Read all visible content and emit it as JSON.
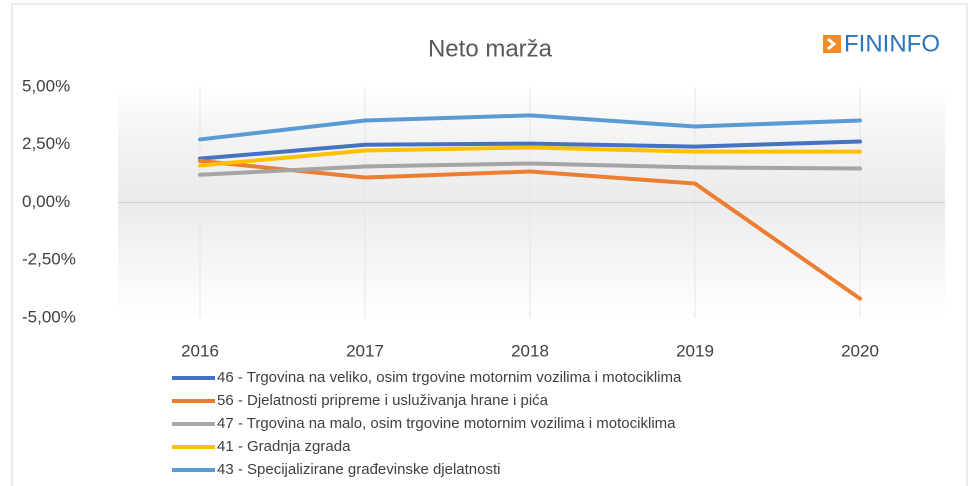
{
  "logo": "FININFO",
  "chart_data": {
    "type": "line",
    "title": "Neto marža",
    "categories": [
      "2016",
      "2017",
      "2018",
      "2019",
      "2020"
    ],
    "ylim": [
      -5,
      5
    ],
    "yticks": [
      {
        "value": 5,
        "label": "5,00%"
      },
      {
        "value": 2.5,
        "label": "2,50%"
      },
      {
        "value": 0,
        "label": "0,00%"
      },
      {
        "value": -2.5,
        "label": "-2,50%"
      },
      {
        "value": -5,
        "label": "-5,00%"
      }
    ],
    "series": [
      {
        "name": "46 - Trgovina na veliko, osim trgovine motornim vozilima i motociklima",
        "color": "#4472c4",
        "values": [
          1.9,
          2.5,
          2.55,
          2.42,
          2.64
        ]
      },
      {
        "name": "56 - Djelatnosti pripreme i usluživanja hrane i pića",
        "color": "#ed7d31",
        "values": [
          1.8,
          1.08,
          1.34,
          0.82,
          -4.16
        ]
      },
      {
        "name": "47 - Trgovina na malo, osim trgovine motornim vozilima i motociklima",
        "color": "#a5a5a5",
        "values": [
          1.2,
          1.56,
          1.69,
          1.52,
          1.47
        ]
      },
      {
        "name": "41 - Gradnja zgrada",
        "color": "#ffc000",
        "values": [
          1.6,
          2.25,
          2.38,
          2.2,
          2.2
        ]
      },
      {
        "name": "43 - Specijalizirane građevinske djelatnosti",
        "color": "#5b9bd5",
        "values": [
          2.73,
          3.55,
          3.77,
          3.29,
          3.55
        ]
      }
    ]
  }
}
